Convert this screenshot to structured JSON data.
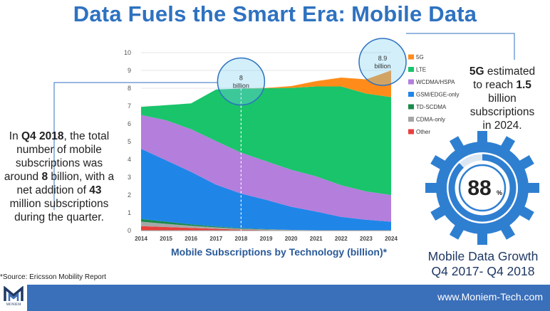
{
  "title": {
    "part1": "Data Fuels the Smart Era:",
    "part2": "Mobile Data"
  },
  "chart_data": {
    "type": "area",
    "stacked": true,
    "x": [
      2014,
      2015,
      2016,
      2017,
      2018,
      2019,
      2020,
      2021,
      2022,
      2023,
      2024
    ],
    "ylim": [
      0,
      10
    ],
    "yticks": [
      0,
      1,
      2,
      3,
      4,
      5,
      6,
      7,
      8,
      9,
      10
    ],
    "grid": true,
    "legend_position": "right",
    "xlabel": "Mobile Subscriptions by Technology (billion)*",
    "series": [
      {
        "name": "Other",
        "color": "#e8403c",
        "values": [
          0.25,
          0.2,
          0.15,
          0.1,
          0.05,
          0.03,
          0.02,
          0.01,
          0.01,
          0.01,
          0.0
        ]
      },
      {
        "name": "CDMA-only",
        "color": "#a6a6a6",
        "values": [
          0.25,
          0.18,
          0.12,
          0.08,
          0.05,
          0.03,
          0.02,
          0.01,
          0.01,
          0.0,
          0.0
        ]
      },
      {
        "name": "TD-SCDMA",
        "color": "#1a8a4a",
        "values": [
          0.15,
          0.12,
          0.08,
          0.05,
          0.03,
          0.02,
          0.0,
          0.0,
          0.0,
          0.0,
          0.0
        ]
      },
      {
        "name": "GSM/EDGE-only",
        "color": "#1f86e8",
        "values": [
          3.95,
          3.45,
          2.95,
          2.35,
          1.95,
          1.65,
          1.3,
          1.05,
          0.75,
          0.6,
          0.5
        ]
      },
      {
        "name": "WCDMA/HSPA",
        "color": "#b47edc",
        "values": [
          1.9,
          2.25,
          2.4,
          2.45,
          2.3,
          2.17,
          2.08,
          1.98,
          1.78,
          1.59,
          1.5
        ]
      },
      {
        "name": "LTE",
        "color": "#19c46a",
        "values": [
          0.45,
          0.85,
          1.45,
          2.9,
          3.6,
          4.1,
          4.6,
          5.05,
          5.55,
          5.5,
          5.5
        ]
      },
      {
        "name": "5G",
        "color": "#ff8c1a",
        "values": [
          0,
          0,
          0,
          0,
          0,
          0.02,
          0.1,
          0.3,
          0.5,
          0.8,
          1.5
        ]
      }
    ],
    "annotations": [
      {
        "x": 2018,
        "value": "8",
        "unit": "billion"
      },
      {
        "x": 2024,
        "value": "8.9",
        "unit": "billion"
      }
    ]
  },
  "left_callout": {
    "p1": "In ",
    "q": "Q4 2018",
    "p2": ", the total number of mobile subscriptions was around ",
    "eight": "8",
    "p3": " billion, with a net addition of ",
    "fortythree": "43",
    "p4": " million subscriptions during the quarter."
  },
  "right_callout": {
    "g": "5G",
    "p1": " estimated to reach ",
    "num": "1.5",
    "p2": " billion subscriptions in 2024."
  },
  "gauge": {
    "value": "88",
    "unit": "%",
    "percent": 88,
    "color": "#2f7fd1"
  },
  "growth_label": {
    "line1": "Mobile Data Growth",
    "line2": "Q4 2017- Q4 2018"
  },
  "source": "*Source: Ericsson Mobility Report",
  "footer": {
    "website": "www.Moniem-Tech.com",
    "logo_text": "MONIEM"
  }
}
